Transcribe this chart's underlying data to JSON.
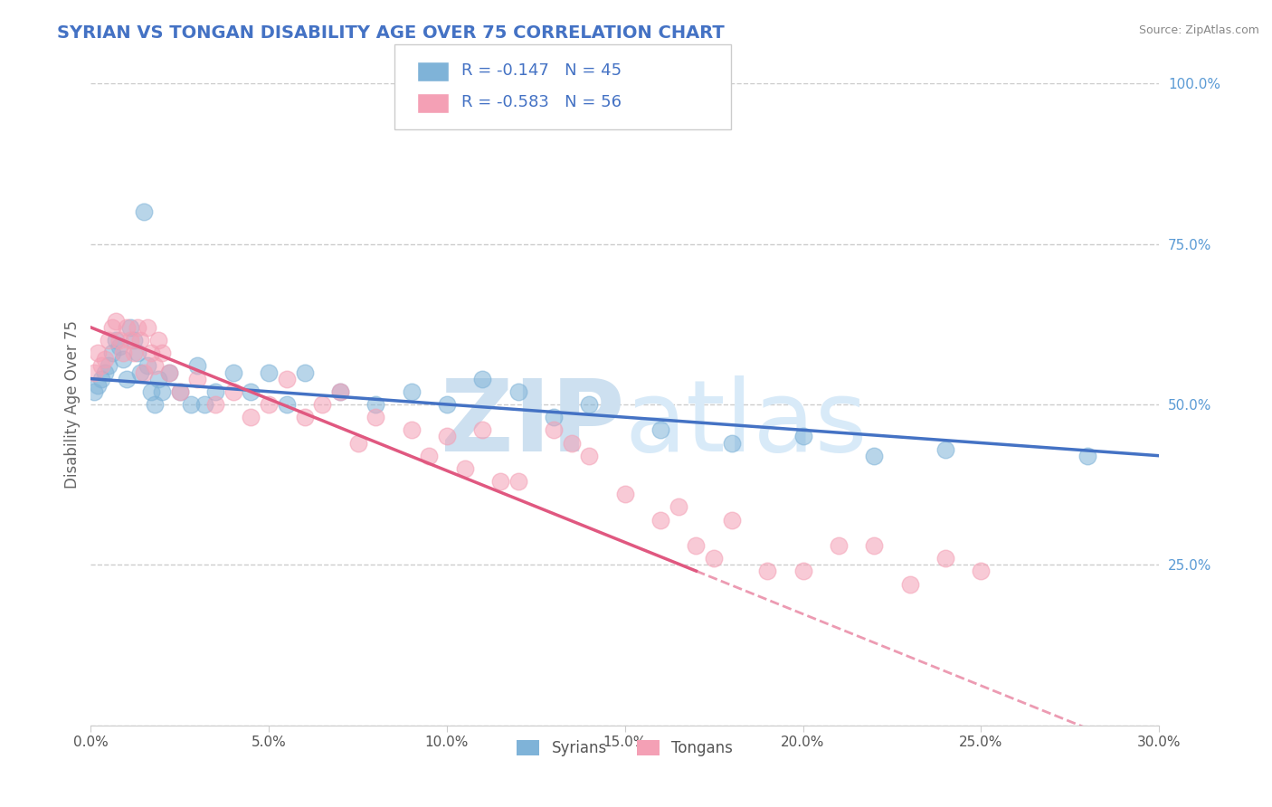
{
  "title": "SYRIAN VS TONGAN DISABILITY AGE OVER 75 CORRELATION CHART",
  "source": "Source: ZipAtlas.com",
  "ylabel": "Disability Age Over 75",
  "xlim": [
    0.0,
    30.0
  ],
  "ylim": [
    0.0,
    100.0
  ],
  "xticks": [
    0.0,
    5.0,
    10.0,
    15.0,
    20.0,
    25.0,
    30.0
  ],
  "yticks": [
    0.0,
    25.0,
    50.0,
    75.0,
    100.0
  ],
  "xtick_labels": [
    "0.0%",
    "5.0%",
    "10.0%",
    "15.0%",
    "20.0%",
    "25.0%",
    "30.0%"
  ],
  "ytick_labels": [
    "",
    "25.0%",
    "50.0%",
    "75.0%",
    "100.0%"
  ],
  "syrian_R": -0.147,
  "syrian_N": 45,
  "tongan_R": -0.583,
  "tongan_N": 56,
  "syrian_color": "#7fb3d8",
  "tongan_color": "#f4a0b5",
  "syrian_line_color": "#4472c4",
  "tongan_line_color": "#e05880",
  "background_color": "#ffffff",
  "grid_color": "#cccccc",
  "title_color": "#4472c4",
  "legend_syrian_label": "Syrians",
  "legend_tongan_label": "Tongans",
  "syrian_x": [
    0.1,
    0.2,
    0.3,
    0.4,
    0.5,
    0.6,
    0.7,
    0.8,
    0.9,
    1.0,
    1.1,
    1.2,
    1.3,
    1.4,
    1.5,
    1.6,
    1.7,
    1.8,
    1.9,
    2.0,
    2.2,
    2.5,
    2.8,
    3.0,
    3.2,
    3.5,
    4.0,
    4.5,
    5.0,
    5.5,
    6.0,
    7.0,
    8.0,
    9.0,
    10.0,
    11.0,
    12.0,
    13.0,
    14.0,
    16.0,
    18.0,
    20.0,
    22.0,
    24.0,
    28.0
  ],
  "syrian_y": [
    52.0,
    53.0,
    54.0,
    55.0,
    56.0,
    58.0,
    60.0,
    59.0,
    57.0,
    54.0,
    62.0,
    60.0,
    58.0,
    55.0,
    80.0,
    56.0,
    52.0,
    50.0,
    54.0,
    52.0,
    55.0,
    52.0,
    50.0,
    56.0,
    50.0,
    52.0,
    55.0,
    52.0,
    55.0,
    50.0,
    55.0,
    52.0,
    50.0,
    52.0,
    50.0,
    54.0,
    52.0,
    48.0,
    50.0,
    46.0,
    44.0,
    45.0,
    42.0,
    43.0,
    42.0
  ],
  "tongan_x": [
    0.1,
    0.2,
    0.3,
    0.4,
    0.5,
    0.6,
    0.7,
    0.8,
    0.9,
    1.0,
    1.1,
    1.2,
    1.3,
    1.4,
    1.5,
    1.6,
    1.7,
    1.8,
    1.9,
    2.0,
    2.2,
    2.5,
    3.0,
    3.5,
    4.0,
    4.5,
    5.0,
    5.5,
    6.0,
    6.5,
    7.0,
    7.5,
    8.0,
    9.0,
    10.0,
    11.0,
    12.0,
    13.0,
    14.0,
    15.0,
    16.0,
    17.0,
    18.0,
    19.0,
    20.0,
    21.0,
    22.0,
    23.0,
    24.0,
    25.0,
    16.5,
    17.5,
    9.5,
    10.5,
    11.5,
    13.5
  ],
  "tongan_y": [
    55.0,
    58.0,
    56.0,
    57.0,
    60.0,
    62.0,
    63.0,
    60.0,
    58.0,
    62.0,
    60.0,
    58.0,
    62.0,
    60.0,
    55.0,
    62.0,
    58.0,
    56.0,
    60.0,
    58.0,
    55.0,
    52.0,
    54.0,
    50.0,
    52.0,
    48.0,
    50.0,
    54.0,
    48.0,
    50.0,
    52.0,
    44.0,
    48.0,
    46.0,
    45.0,
    46.0,
    38.0,
    46.0,
    42.0,
    36.0,
    32.0,
    28.0,
    32.0,
    24.0,
    24.0,
    28.0,
    28.0,
    22.0,
    26.0,
    24.0,
    34.0,
    26.0,
    42.0,
    40.0,
    38.0,
    44.0
  ]
}
